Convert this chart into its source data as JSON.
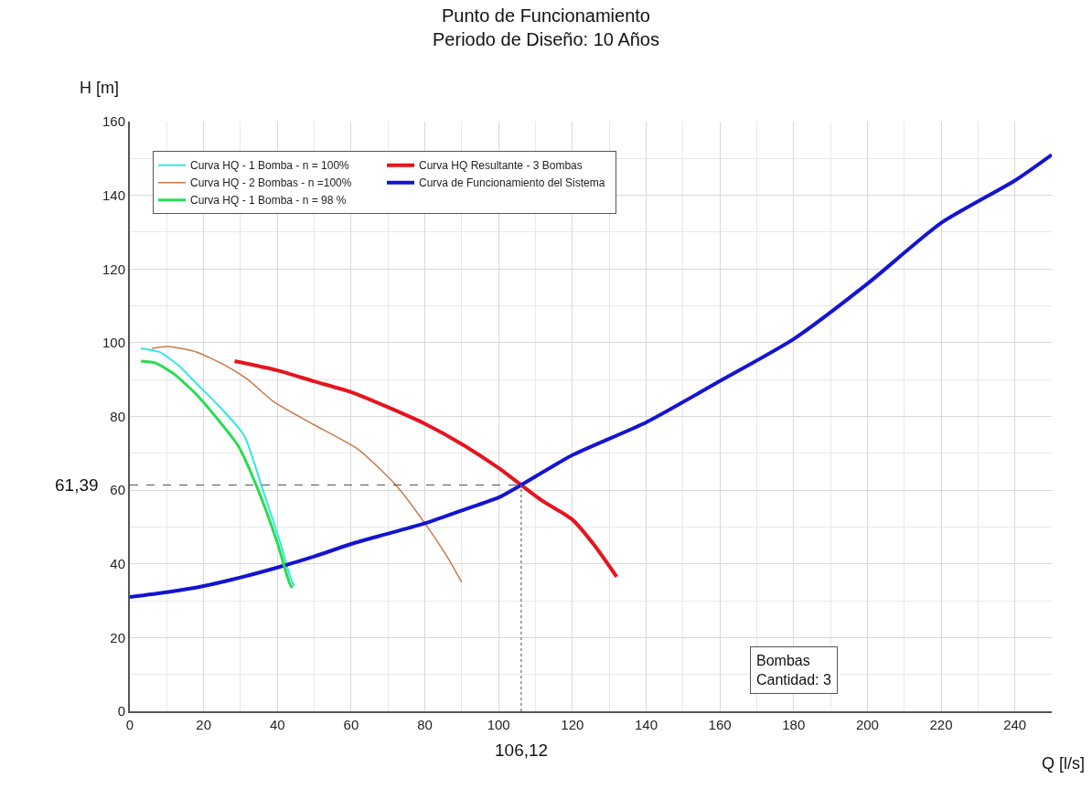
{
  "chart_data": {
    "type": "line",
    "title": "Punto de Funcionamiento",
    "subtitle": "Periodo de Diseño: 10 Años",
    "xlabel": "Q [l/s]",
    "ylabel": "H [m]",
    "series": [
      {
        "name": "Curva HQ - 1 Bomba - n = 100%",
        "color": "#33e6e6",
        "x": [
          3,
          8,
          13,
          18,
          24,
          31,
          35.6,
          40.7,
          43.7,
          44.6
        ],
        "values": [
          98.5,
          97.5,
          94,
          89,
          83,
          74.8,
          61.5,
          46,
          35.8,
          34
        ]
      },
      {
        "name": "Curva HQ Resultante - 3 Bombas",
        "color": "#e6141e",
        "x": [
          28.4,
          40,
          50,
          60,
          70,
          80,
          90,
          100,
          106.1,
          112,
          120,
          126,
          132
        ],
        "values": [
          95,
          92.5,
          89.5,
          86.6,
          82.5,
          78,
          72.5,
          66,
          61.4,
          57,
          52,
          45,
          36.5
        ]
      },
      {
        "name": "Curva HQ - 2 Bombas - n =100%",
        "color": "#c8784b",
        "x": [
          6,
          10.4,
          18,
          25.6,
          32,
          39,
          50,
          62,
          72,
          80,
          86,
          90
        ],
        "values": [
          98.5,
          99,
          97.5,
          94,
          90,
          84,
          77.7,
          71,
          61.5,
          51,
          42,
          35
        ]
      },
      {
        "name": "Curva de Funcionamiento del Sistema",
        "color": "#1414d2",
        "x": [
          0,
          10,
          20,
          30,
          40,
          50,
          60,
          70,
          80,
          90,
          100,
          106.1,
          120,
          140,
          160,
          180,
          200,
          220,
          240,
          250
        ],
        "values": [
          31,
          32.3,
          34,
          36.3,
          39,
          42,
          45.4,
          48.2,
          51,
          54.5,
          58,
          61.4,
          69.5,
          78.4,
          89.6,
          101,
          116,
          132.5,
          144,
          151
        ]
      },
      {
        "name": "Curva HQ - 1 Bomba - n = 98 %",
        "color": "#28dc50",
        "x": [
          3,
          7,
          12,
          18,
          24,
          29.4,
          34.6,
          39.9,
          43.2,
          44
        ],
        "values": [
          95,
          94.5,
          91.5,
          86,
          79,
          72,
          60.5,
          46,
          35,
          33.5
        ]
      }
    ],
    "xlim": [
      0,
      250
    ],
    "xticks": [
      0,
      20,
      40,
      60,
      80,
      100,
      120,
      140,
      160,
      180,
      200,
      220,
      240
    ],
    "ylim": [
      0,
      160
    ],
    "yticks": [
      0,
      20,
      40,
      60,
      80,
      100,
      120,
      140,
      160
    ],
    "grid": true,
    "legend": "top",
    "marker": "none",
    "line_style": "solid",
    "ref_lines": [
      {
        "axis": "y",
        "value": 61.39,
        "label": "61,39",
        "color": "#555555",
        "line_style": "dashed"
      },
      {
        "axis": "x",
        "value": 106.12,
        "label": "106,12",
        "color": "#888888",
        "line_style": "dotted"
      }
    ],
    "annotations": [
      "Bombas",
      "Cantidad: 3"
    ]
  }
}
